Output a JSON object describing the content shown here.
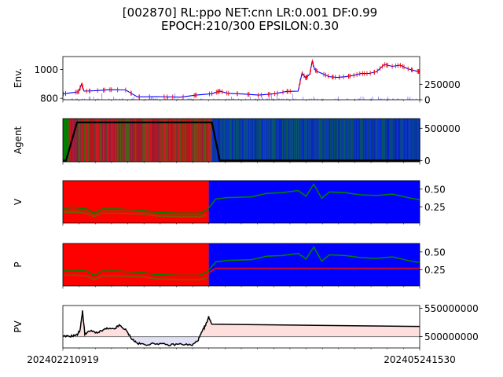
{
  "title_line1": "[002870] RL:ppo NET:cnn LR:0.001 DF:0.99",
  "title_line2": "EPOCH:210/300 EPSILON:0.30",
  "colors": {
    "buy": "#ff0000",
    "sell": "#0000ff",
    "hold": "#008000",
    "value_line": "#008000",
    "policy_line": "#0000ff",
    "pv_line": "#000000",
    "pv_up_fill": "#ffdede",
    "pv_down_fill": "#e0e0f6"
  },
  "chart_data": [
    {
      "name": "Env.",
      "type": "line",
      "ylabel": "Env.",
      "ylim": [
        790,
        1090
      ],
      "yticks": [
        "1000",
        "800"
      ],
      "ylim_right": [
        0,
        700000
      ],
      "yticks_right": [
        "250000",
        "0"
      ],
      "series": [
        {
          "kind": "price",
          "points": [
            [
              0,
              830
            ],
            [
              10,
              838
            ],
            [
              20,
              845
            ],
            [
              24,
              900
            ],
            [
              27,
              850
            ],
            [
              40,
              852
            ],
            [
              60,
              860
            ],
            [
              80,
              858
            ],
            [
              95,
              810
            ],
            [
              120,
              812
            ],
            [
              150,
              808
            ],
            [
              170,
              822
            ],
            [
              190,
              832
            ],
            [
              200,
              850
            ],
            [
              210,
              835
            ],
            [
              230,
              830
            ],
            [
              250,
              822
            ],
            [
              270,
              832
            ],
            [
              285,
              848
            ],
            [
              300,
              850
            ],
            [
              305,
              975
            ],
            [
              310,
              940
            ],
            [
              315,
              970
            ],
            [
              318,
              1060
            ],
            [
              321,
              1000
            ],
            [
              325,
              985
            ],
            [
              340,
              950
            ],
            [
              350,
              945
            ],
            [
              360,
              950
            ],
            [
              370,
              958
            ],
            [
              380,
              972
            ],
            [
              390,
              972
            ],
            [
              400,
              985
            ],
            [
              410,
              1035
            ],
            [
              420,
              1022
            ],
            [
              430,
              1030
            ],
            [
              440,
              1005
            ],
            [
              450,
              990
            ],
            [
              455,
              985
            ]
          ]
        }
      ]
    },
    {
      "name": "Agent",
      "type": "area",
      "ylabel": "Agent",
      "ylim": [
        -20000,
        650000
      ],
      "yticks_right": [
        "500000",
        "0"
      ],
      "action_bands": [
        {
          "from": 0,
          "to": 7,
          "action": "hold"
        },
        {
          "from": 7,
          "to": 190,
          "action": "buy"
        },
        {
          "from": 190,
          "to": 455,
          "action": "sell"
        }
      ],
      "series": [
        {
          "kind": "balance",
          "points": [
            [
              0,
              0
            ],
            [
              4,
              0
            ],
            [
              18,
              590000
            ],
            [
              190,
              590000
            ],
            [
              200,
              0
            ],
            [
              455,
              0
            ]
          ]
        }
      ]
    },
    {
      "name": "V",
      "type": "line",
      "ylabel": "V",
      "ylim": [
        0.02,
        0.62
      ],
      "yticks_right": [
        "0.50",
        "0.25"
      ],
      "regions": [
        {
          "from": 0,
          "to": 186,
          "action": "buy"
        },
        {
          "from": 186,
          "to": 455,
          "action": "sell"
        }
      ],
      "series": [
        {
          "kind": "hold_value",
          "points": [
            [
              0,
              0.17
            ],
            [
              15,
              0.175
            ],
            [
              30,
              0.16
            ],
            [
              40,
              0.11
            ],
            [
              50,
              0.16
            ],
            [
              70,
              0.16
            ],
            [
              100,
              0.15
            ],
            [
              120,
              0.12
            ],
            [
              150,
              0.11
            ],
            [
              175,
              0.11
            ],
            [
              183,
              0.13
            ]
          ]
        },
        {
          "kind": "buy_value",
          "points": [
            [
              0,
              0.2
            ],
            [
              15,
              0.205
            ],
            [
              30,
              0.19
            ],
            [
              40,
              0.14
            ],
            [
              50,
              0.19
            ],
            [
              70,
              0.19
            ],
            [
              100,
              0.18
            ],
            [
              120,
              0.15
            ],
            [
              150,
              0.14
            ],
            [
              175,
              0.14
            ],
            [
              183,
              0.16
            ]
          ]
        },
        {
          "kind": "value",
          "points": [
            [
              0,
              0.23
            ],
            [
              15,
              0.24
            ],
            [
              30,
              0.22
            ],
            [
              40,
              0.16
            ],
            [
              50,
              0.22
            ],
            [
              70,
              0.22
            ],
            [
              100,
              0.2
            ],
            [
              120,
              0.17
            ],
            [
              150,
              0.16
            ],
            [
              175,
              0.16
            ],
            [
              185,
              0.22
            ],
            [
              195,
              0.36
            ],
            [
              210,
              0.38
            ],
            [
              240,
              0.39
            ],
            [
              260,
              0.44
            ],
            [
              280,
              0.45
            ],
            [
              300,
              0.48
            ],
            [
              310,
              0.4
            ],
            [
              320,
              0.57
            ],
            [
              330,
              0.37
            ],
            [
              340,
              0.46
            ],
            [
              360,
              0.45
            ],
            [
              380,
              0.42
            ],
            [
              400,
              0.41
            ],
            [
              420,
              0.43
            ],
            [
              440,
              0.38
            ],
            [
              455,
              0.35
            ]
          ]
        }
      ]
    },
    {
      "name": "P",
      "type": "line",
      "ylabel": "P",
      "ylim": [
        0.02,
        0.62
      ],
      "yticks_right": [
        "0.50",
        "0.25"
      ],
      "regions": [
        {
          "from": 0,
          "to": 186,
          "action": "buy"
        },
        {
          "from": 186,
          "to": 455,
          "action": "sell"
        }
      ],
      "series": [
        {
          "kind": "hold_policy",
          "points": [
            [
              0,
              0.17
            ],
            [
              15,
              0.175
            ],
            [
              30,
              0.16
            ],
            [
              40,
              0.11
            ],
            [
              50,
              0.16
            ],
            [
              70,
              0.16
            ],
            [
              100,
              0.15
            ],
            [
              120,
              0.12
            ],
            [
              150,
              0.11
            ],
            [
              175,
              0.11
            ],
            [
              183,
              0.13
            ]
          ]
        },
        {
          "kind": "buy_policy",
          "points": [
            [
              0,
              0.21
            ],
            [
              15,
              0.215
            ],
            [
              30,
              0.2
            ],
            [
              40,
              0.15
            ],
            [
              50,
              0.2
            ],
            [
              70,
              0.2
            ],
            [
              100,
              0.19
            ],
            [
              120,
              0.16
            ],
            [
              150,
              0.15
            ],
            [
              175,
              0.15
            ],
            [
              185,
              0.2
            ],
            [
              195,
              0.27
            ],
            [
              455,
              0.27
            ]
          ]
        },
        {
          "kind": "sell_policy",
          "points": [
            [
              0,
              0.24
            ],
            [
              15,
              0.245
            ],
            [
              30,
              0.23
            ],
            [
              40,
              0.17
            ],
            [
              50,
              0.23
            ],
            [
              70,
              0.23
            ],
            [
              100,
              0.21
            ],
            [
              120,
              0.18
            ],
            [
              150,
              0.17
            ],
            [
              175,
              0.17
            ],
            [
              185,
              0.23
            ],
            [
              195,
              0.36
            ],
            [
              210,
              0.38
            ],
            [
              240,
              0.39
            ],
            [
              260,
              0.44
            ],
            [
              280,
              0.45
            ],
            [
              300,
              0.48
            ],
            [
              310,
              0.4
            ],
            [
              320,
              0.57
            ],
            [
              330,
              0.37
            ],
            [
              340,
              0.46
            ],
            [
              360,
              0.45
            ],
            [
              380,
              0.42
            ],
            [
              400,
              0.41
            ],
            [
              420,
              0.43
            ],
            [
              440,
              0.38
            ],
            [
              455,
              0.35
            ]
          ]
        }
      ]
    },
    {
      "name": "PV",
      "type": "line",
      "ylabel": "PV",
      "ylim": [
        480000000,
        555000000
      ],
      "baseline": 500000000,
      "yticks_right": [
        "550000000",
        "500000000"
      ],
      "x_start_label": "202402210919",
      "x_end_label": "202405241530",
      "series": [
        {
          "kind": "portfolio_value",
          "points": [
            [
              0,
              500000000
            ],
            [
              10,
              501000000
            ],
            [
              18,
              503000000
            ],
            [
              22,
              512000000
            ],
            [
              25,
              545000000
            ],
            [
              28,
              505000000
            ],
            [
              35,
              510000000
            ],
            [
              45,
              507000000
            ],
            [
              55,
              514000000
            ],
            [
              65,
              513000000
            ],
            [
              72,
              520000000
            ],
            [
              80,
              512000000
            ],
            [
              88,
              496000000
            ],
            [
              95,
              488000000
            ],
            [
              105,
              486000000
            ],
            [
              120,
              488000000
            ],
            [
              135,
              485000000
            ],
            [
              150,
              487000000
            ],
            [
              165,
              485000000
            ],
            [
              172,
              493000000
            ],
            [
              178,
              510000000
            ],
            [
              182,
              520000000
            ],
            [
              186,
              535000000
            ],
            [
              190,
              522000000
            ],
            [
              455,
              518000000
            ]
          ]
        }
      ]
    }
  ]
}
